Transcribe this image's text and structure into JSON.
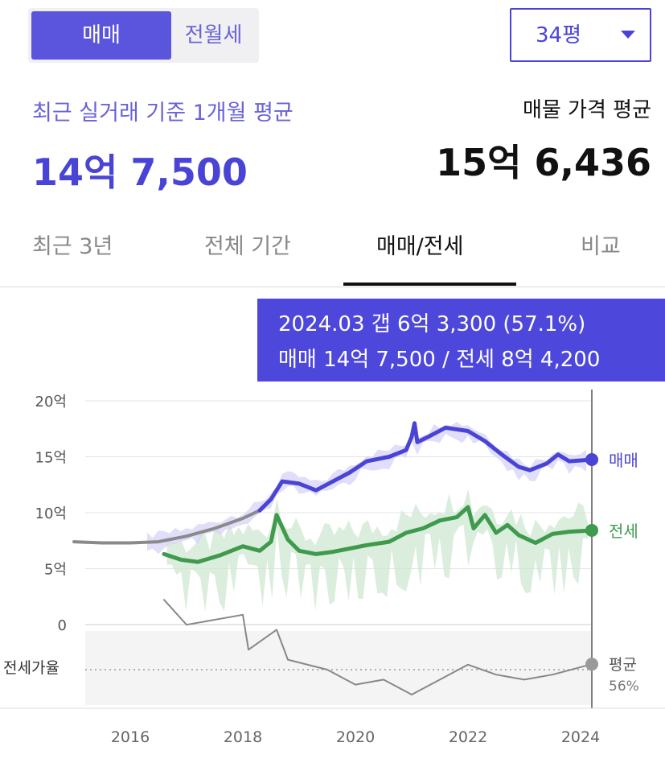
{
  "toggle": {
    "sale_label": "매매",
    "jeonse_label": "전월세"
  },
  "size_select": {
    "value": "34평"
  },
  "summary": {
    "recent_label": "최근 실거래 기준 1개월 평균",
    "recent_value": "14억 7,500",
    "asking_label": "매물 가격 평균",
    "asking_value": "15억 6,436"
  },
  "tabs": [
    "최근 3년",
    "전체 기간",
    "매매/전세",
    "비교"
  ],
  "tooltip": {
    "line1": "2024.03  갭 6억 3,300 (57.1%)",
    "line2": "매매 14억 7,500 / 전세 8억 4,200"
  },
  "colors": {
    "sale": "#4a44d6",
    "jeonse": "#3f9a4e",
    "gray": "#8a8a8a",
    "tooltip": "#4d47dc"
  },
  "chart_data": {
    "type": "line",
    "x_ticks": [
      "2016",
      "2018",
      "2020",
      "2022",
      "2024"
    ],
    "y_ticks": [
      "20억",
      "15억",
      "10억",
      "5억",
      "0"
    ],
    "ylim": [
      0,
      20
    ],
    "y_unit": "억",
    "ratio_label": "전세가율",
    "ratio_avg_label": "평균",
    "ratio_avg_value": "56%",
    "series": [
      {
        "name": "매매",
        "values": [
          [
            2015.0,
            7.4
          ],
          [
            2015.5,
            7.3
          ],
          [
            2016.0,
            7.3
          ],
          [
            2016.5,
            7.4
          ],
          [
            2017.0,
            7.9
          ],
          [
            2017.5,
            8.6
          ],
          [
            2018.0,
            9.5
          ],
          [
            2018.3,
            10.2
          ],
          [
            2018.5,
            11.2
          ],
          [
            2018.7,
            12.8
          ],
          [
            2019.0,
            12.6
          ],
          [
            2019.3,
            12.0
          ],
          [
            2019.6,
            12.8
          ],
          [
            2019.9,
            13.6
          ],
          [
            2020.2,
            14.6
          ],
          [
            2020.6,
            15.0
          ],
          [
            2020.9,
            15.6
          ],
          [
            2021.0,
            16.8
          ],
          [
            2021.05,
            18.0
          ],
          [
            2021.1,
            16.3
          ],
          [
            2021.3,
            16.8
          ],
          [
            2021.6,
            17.6
          ],
          [
            2022.0,
            17.3
          ],
          [
            2022.3,
            16.4
          ],
          [
            2022.6,
            15.2
          ],
          [
            2022.9,
            14.1
          ],
          [
            2023.1,
            13.8
          ],
          [
            2023.4,
            14.4
          ],
          [
            2023.6,
            15.2
          ],
          [
            2023.8,
            14.6
          ],
          [
            2024.2,
            14.75
          ]
        ]
      },
      {
        "name": "전세",
        "values": [
          [
            2016.6,
            6.3
          ],
          [
            2016.9,
            5.8
          ],
          [
            2017.2,
            5.6
          ],
          [
            2017.6,
            6.2
          ],
          [
            2018.0,
            7.0
          ],
          [
            2018.3,
            6.6
          ],
          [
            2018.5,
            7.4
          ],
          [
            2018.6,
            9.8
          ],
          [
            2018.8,
            7.6
          ],
          [
            2019.0,
            6.6
          ],
          [
            2019.3,
            6.3
          ],
          [
            2019.6,
            6.5
          ],
          [
            2019.9,
            6.8
          ],
          [
            2020.2,
            7.1
          ],
          [
            2020.6,
            7.4
          ],
          [
            2020.9,
            8.2
          ],
          [
            2021.2,
            8.6
          ],
          [
            2021.5,
            9.3
          ],
          [
            2021.8,
            9.6
          ],
          [
            2022.0,
            10.5
          ],
          [
            2022.1,
            8.6
          ],
          [
            2022.3,
            9.8
          ],
          [
            2022.5,
            8.2
          ],
          [
            2022.7,
            8.9
          ],
          [
            2022.9,
            8.0
          ],
          [
            2023.2,
            7.3
          ],
          [
            2023.5,
            8.1
          ],
          [
            2023.8,
            8.3
          ],
          [
            2024.2,
            8.42
          ]
        ]
      },
      {
        "name": "전세가율",
        "values": [
          [
            2016.6,
            70
          ],
          [
            2017.0,
            65
          ],
          [
            2017.5,
            66
          ],
          [
            2018.0,
            67
          ],
          [
            2018.1,
            60
          ],
          [
            2018.6,
            64
          ],
          [
            2018.8,
            58
          ],
          [
            2019.5,
            56
          ],
          [
            2020.0,
            53
          ],
          [
            2020.5,
            54
          ],
          [
            2021.0,
            51
          ],
          [
            2021.5,
            54
          ],
          [
            2022.0,
            57
          ],
          [
            2022.5,
            55
          ],
          [
            2023.0,
            54
          ],
          [
            2023.5,
            55
          ],
          [
            2024.2,
            57.1
          ]
        ]
      }
    ]
  }
}
